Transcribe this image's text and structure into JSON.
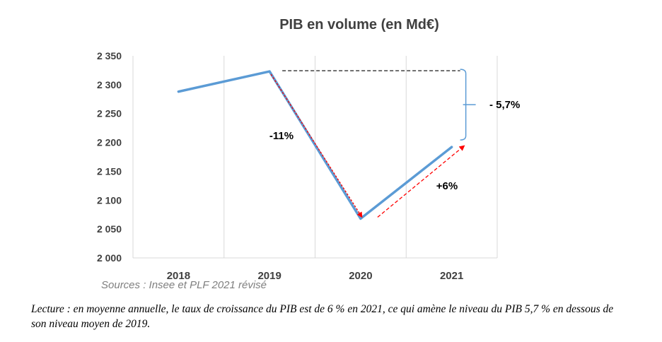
{
  "chart_data": {
    "type": "line",
    "title": "PIB en volume (en Md€)",
    "categories": [
      "2018",
      "2019",
      "2020",
      "2021"
    ],
    "series": [
      {
        "values": [
          2288,
          2323,
          2068,
          2192
        ],
        "color": "#5b9bd5"
      }
    ],
    "ylim": [
      2000,
      2350
    ],
    "yticks": [
      2000,
      2050,
      2100,
      2150,
      2200,
      2250,
      2300,
      2350
    ],
    "ytick_labels": [
      "2 000",
      "2 050",
      "2 100",
      "2 150",
      "2 200",
      "2 250",
      "2 300",
      "2 350"
    ],
    "grid": "vertical",
    "annotations": {
      "decline": "-11%",
      "rebound": "+6%",
      "gap": "- 5,7%"
    },
    "arrow_color": "#ff0000"
  },
  "source": "Sources : Insee et PLF 2021 révisé",
  "note": "Lecture : en moyenne annuelle, le taux de croissance du PIB est de 6 % en 2021, ce qui amène le niveau du PIB 5,7 % en dessous de son niveau moyen de 2019."
}
